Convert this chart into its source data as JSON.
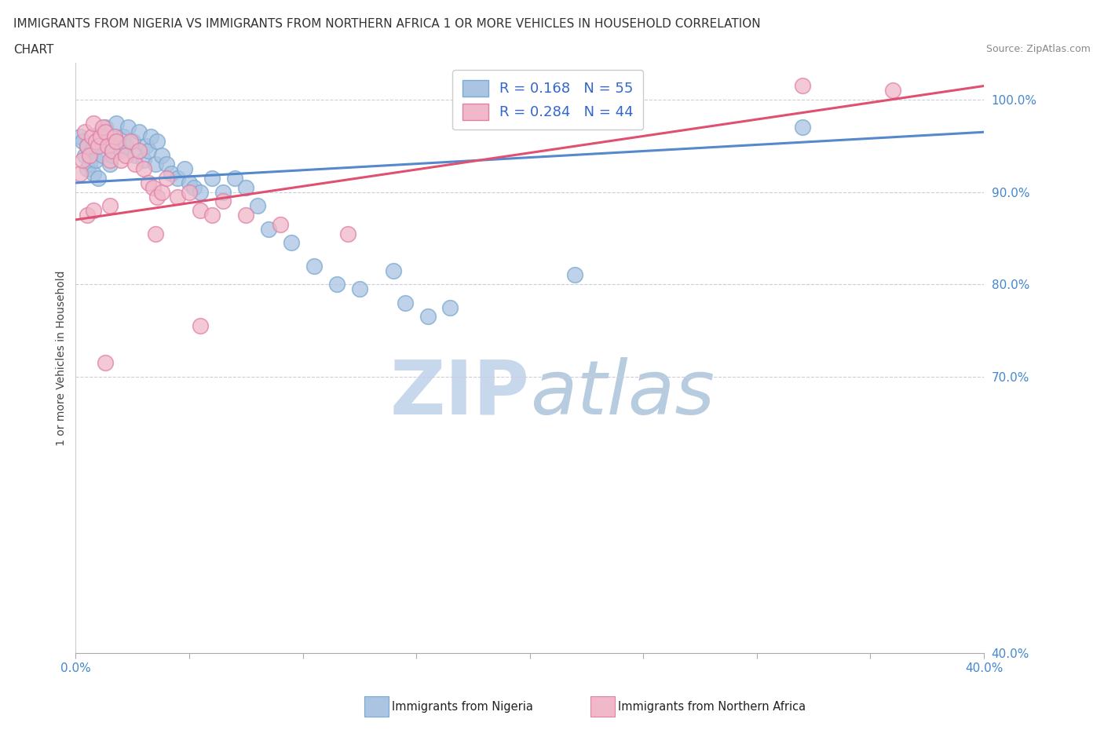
{
  "title_line1": "IMMIGRANTS FROM NIGERIA VS IMMIGRANTS FROM NORTHERN AFRICA 1 OR MORE VEHICLES IN HOUSEHOLD CORRELATION",
  "title_line2": "CHART",
  "source_text": "Source: ZipAtlas.com",
  "ylabel_label": "1 or more Vehicles in Household",
  "xmin": 0.0,
  "xmax": 40.0,
  "ymin": 40.0,
  "ymax": 104.0,
  "ytick_positions": [
    40.0,
    70.0,
    80.0,
    90.0,
    100.0
  ],
  "ytick_labels": [
    "40.0%",
    "70.0%",
    "80.0%",
    "90.0%",
    "100.0%"
  ],
  "legend_r1": "R = 0.168",
  "legend_n1": "N = 55",
  "legend_r2": "R = 0.284",
  "legend_n2": "N = 44",
  "nigeria_color": "#aac4e2",
  "nigeria_edge": "#7aaad0",
  "northern_africa_color": "#f0b8c8",
  "northern_africa_edge": "#e080a8",
  "nigeria_line_color": "#5588cc",
  "northern_africa_line_color": "#e05070",
  "watermark_color": "#d0dde8",
  "nigeria_line_x0": 0.0,
  "nigeria_line_y0": 91.0,
  "nigeria_line_x1": 40.0,
  "nigeria_line_y1": 96.5,
  "n_africa_line_x0": 0.0,
  "n_africa_line_y0": 87.0,
  "n_africa_line_x1": 40.0,
  "n_africa_line_y1": 101.5,
  "nigeria_x": [
    0.2,
    0.3,
    0.4,
    0.5,
    0.5,
    0.6,
    0.7,
    0.8,
    0.9,
    1.0,
    1.1,
    1.2,
    1.3,
    1.4,
    1.5,
    1.6,
    1.7,
    1.8,
    2.0,
    2.1,
    2.2,
    2.3,
    2.5,
    2.6,
    2.8,
    3.0,
    3.1,
    3.2,
    3.3,
    3.5,
    3.6,
    3.8,
    4.0,
    4.2,
    4.5,
    4.8,
    5.0,
    5.2,
    5.5,
    6.0,
    6.5,
    7.0,
    7.5,
    8.0,
    8.5,
    9.5,
    10.5,
    11.5,
    12.5,
    14.0,
    14.5,
    15.5,
    16.5,
    22.0,
    32.0
  ],
  "nigeria_y": [
    96.0,
    95.5,
    94.0,
    92.5,
    95.0,
    93.0,
    94.5,
    92.0,
    93.5,
    91.5,
    96.5,
    94.0,
    97.0,
    95.5,
    93.0,
    94.0,
    96.0,
    97.5,
    94.5,
    96.0,
    95.0,
    97.0,
    95.5,
    94.0,
    96.5,
    93.5,
    95.0,
    94.5,
    96.0,
    93.0,
    95.5,
    94.0,
    93.0,
    92.0,
    91.5,
    92.5,
    91.0,
    90.5,
    90.0,
    91.5,
    90.0,
    91.5,
    90.5,
    88.5,
    86.0,
    84.5,
    82.0,
    80.0,
    79.5,
    81.5,
    78.0,
    76.5,
    77.5,
    81.0,
    97.0
  ],
  "n_africa_x": [
    0.2,
    0.3,
    0.4,
    0.5,
    0.6,
    0.7,
    0.8,
    0.9,
    1.0,
    1.1,
    1.2,
    1.3,
    1.4,
    1.5,
    1.6,
    1.7,
    1.8,
    2.0,
    2.2,
    2.4,
    2.6,
    2.8,
    3.0,
    3.2,
    3.4,
    3.6,
    3.8,
    4.0,
    4.5,
    5.0,
    5.5,
    6.0,
    6.5,
    7.5,
    9.0,
    12.0,
    1.5,
    3.5,
    5.5,
    0.5,
    0.8,
    32.0,
    36.0,
    1.3
  ],
  "n_africa_y": [
    92.0,
    93.5,
    96.5,
    95.0,
    94.0,
    96.0,
    97.5,
    95.5,
    95.0,
    96.0,
    97.0,
    96.5,
    95.0,
    93.5,
    94.5,
    96.0,
    95.5,
    93.5,
    94.0,
    95.5,
    93.0,
    94.5,
    92.5,
    91.0,
    90.5,
    89.5,
    90.0,
    91.5,
    89.5,
    90.0,
    88.0,
    87.5,
    89.0,
    87.5,
    86.5,
    85.5,
    88.5,
    85.5,
    75.5,
    87.5,
    88.0,
    101.5,
    101.0,
    71.5
  ]
}
